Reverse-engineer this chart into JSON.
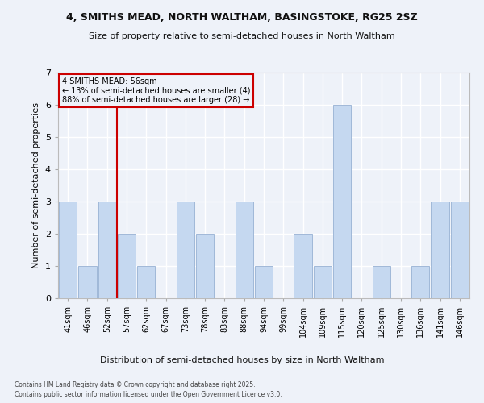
{
  "title": "4, SMITHS MEAD, NORTH WALTHAM, BASINGSTOKE, RG25 2SZ",
  "subtitle": "Size of property relative to semi-detached houses in North Waltham",
  "xlabel": "Distribution of semi-detached houses by size in North Waltham",
  "ylabel": "Number of semi-detached properties",
  "categories": [
    "41sqm",
    "46sqm",
    "52sqm",
    "57sqm",
    "62sqm",
    "67sqm",
    "73sqm",
    "78sqm",
    "83sqm",
    "88sqm",
    "94sqm",
    "99sqm",
    "104sqm",
    "109sqm",
    "115sqm",
    "120sqm",
    "125sqm",
    "130sqm",
    "136sqm",
    "141sqm",
    "146sqm"
  ],
  "values": [
    3,
    1,
    3,
    2,
    1,
    0,
    3,
    2,
    0,
    3,
    1,
    0,
    2,
    1,
    6,
    0,
    1,
    0,
    1,
    3,
    3
  ],
  "bar_color": "#c5d8f0",
  "bar_edge_color": "#a0b8d8",
  "subject_sqm": 56,
  "subject_label": "4 SMITHS MEAD: 56sqm",
  "pct_smaller": 13,
  "pct_larger": 88,
  "n_smaller": 4,
  "n_larger": 28,
  "annotation_box_color": "#cc0000",
  "vline_color": "#cc0000",
  "background_color": "#eef2f9",
  "grid_color": "#ffffff",
  "ylim": [
    0,
    7
  ],
  "yticks": [
    0,
    1,
    2,
    3,
    4,
    5,
    6,
    7
  ],
  "footnote1": "Contains HM Land Registry data © Crown copyright and database right 2025.",
  "footnote2": "Contains public sector information licensed under the Open Government Licence v3.0."
}
